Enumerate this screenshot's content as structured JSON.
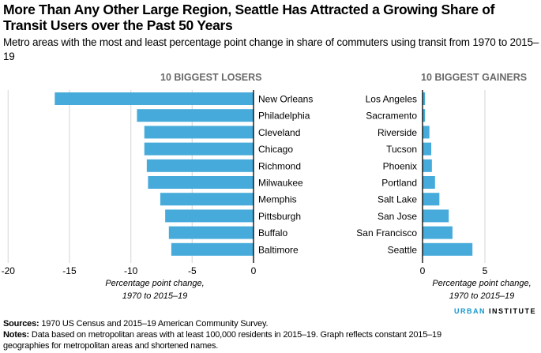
{
  "title": "More Than Any Other Large Region, Seattle Has Attracted a Growing Share of Transit Users over the Past 50 Years",
  "subtitle": "Metro areas with the most and least percentage point change in share of commuters using transit from 1970 to 2015–19",
  "chart_data": [
    {
      "type": "bar",
      "orientation": "horizontal",
      "title": "10 BIGGEST LOSERS",
      "categories": [
        "New Orleans",
        "Philadelphia",
        "Cleveland",
        "Chicago",
        "Richmond",
        "Milwaukee",
        "Memphis",
        "Pittsburgh",
        "Buffalo",
        "Baltimore"
      ],
      "values": [
        -16.2,
        -9.5,
        -8.9,
        -8.9,
        -8.7,
        -8.6,
        -7.6,
        -7.2,
        -6.9,
        -6.7
      ],
      "xlabel": "Percentage point change, 1970 to 2015–19",
      "xlim": [
        -20,
        0
      ],
      "xticks": [
        "-20",
        "-15",
        "-10",
        "-5",
        "0"
      ],
      "grid": true
    },
    {
      "type": "bar",
      "orientation": "horizontal",
      "title": "10 BIGGEST GAINERS",
      "categories": [
        "Los Angeles",
        "Sacramento",
        "Riverside",
        "Tucson",
        "Phoenix",
        "Portland",
        "Salt Lake",
        "San Jose",
        "San Francisco",
        "Seattle"
      ],
      "values": [
        0.2,
        0.2,
        0.55,
        0.7,
        0.75,
        1.0,
        1.35,
        2.1,
        2.4,
        4.0
      ],
      "xlabel": "Percentage point change, 1970 to 2015–19",
      "xlim": [
        0,
        9
      ],
      "xticks": [
        "0",
        "5"
      ],
      "grid": true
    }
  ],
  "axis_label_line1": "Percentage point change,",
  "axis_label_line2": "1970 to 2015–19",
  "colors": {
    "bar": "#46abdb",
    "grid": "#dedede",
    "header": "#696969",
    "logo_blue": "#1696d2"
  },
  "footer": {
    "sources_label": "Sources:",
    "sources_text": " 1970 US Census and 2015–19 American Community Survey.",
    "notes_label": "Notes:",
    "notes_text": " Data based on metropolitan areas with at least 100,000 residents in 2015–19. Graph reflects constant 2015–19 geographies for metropolitan areas and shortened names."
  },
  "logo": {
    "part1": "URBAN",
    "part2": "INSTITUTE"
  }
}
